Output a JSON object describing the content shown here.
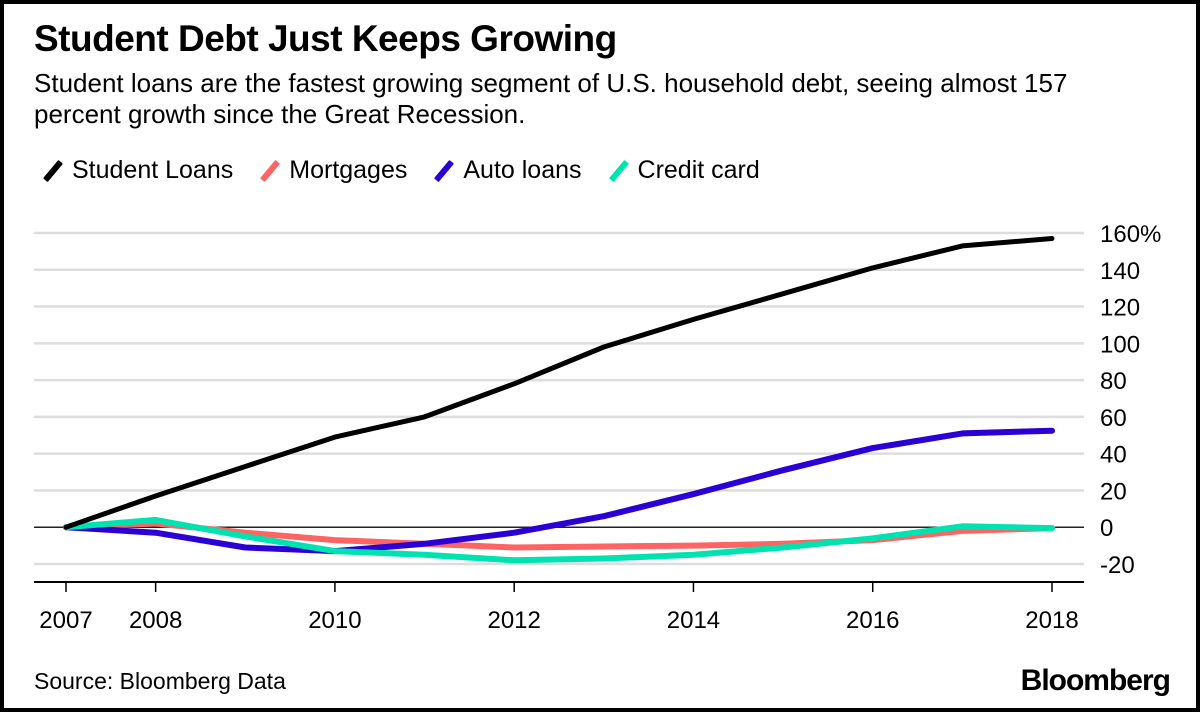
{
  "header": {
    "title": "Student Debt Just Keeps Growing",
    "subtitle": "Student loans are the fastest growing segment of U.S. household debt, seeing almost 157 percent growth since the Great Recession."
  },
  "footer": {
    "source": "Source: Bloomberg Data",
    "brand": "Bloomberg"
  },
  "chart_data": {
    "type": "line",
    "title": "Student Debt Just Keeps Growing",
    "subtitle": "Student loans are the fastest growing segment of U.S. household debt, seeing almost 157 percent growth since the Great Recession.",
    "xlabel": "",
    "ylabel": "",
    "x": [
      2007,
      2008,
      2009,
      2010,
      2011,
      2012,
      2013,
      2014,
      2015,
      2016,
      2017,
      2018
    ],
    "xticks": [
      2007,
      2008,
      2010,
      2012,
      2014,
      2016,
      2018
    ],
    "xtick_labels": [
      "2007",
      "2008",
      "2010",
      "2012",
      "2014",
      "2016",
      "2018"
    ],
    "ylim": [
      -20,
      160
    ],
    "yticks": [
      -20,
      0,
      20,
      40,
      60,
      80,
      100,
      120,
      140,
      160
    ],
    "ytick_labels": [
      "-20",
      "0",
      "20",
      "40",
      "60",
      "80",
      "100",
      "120",
      "140",
      "160%"
    ],
    "y_axis_side": "right",
    "grid": true,
    "legend_position": "top-left",
    "series": [
      {
        "name": "Student Loans",
        "color": "#000000",
        "values": [
          0,
          17,
          33,
          49,
          60,
          78,
          98,
          113,
          127,
          141,
          153,
          157
        ]
      },
      {
        "name": "Mortgages",
        "color": "#FF6464",
        "values": [
          0,
          2,
          -3,
          -7,
          -9,
          -11,
          -10.5,
          -10,
          -9,
          -7,
          -2,
          -0.5
        ]
      },
      {
        "name": "Auto loans",
        "color": "#2A00D5",
        "values": [
          0,
          -3,
          -11,
          -13,
          -9,
          -3,
          6,
          18,
          31,
          43,
          51,
          52.5
        ]
      },
      {
        "name": "Credit card",
        "color": "#00E3B0",
        "values": [
          0,
          4,
          -5,
          -13,
          -15,
          -18,
          -17,
          -15,
          -11,
          -6,
          0.5,
          -0.5
        ]
      }
    ]
  }
}
